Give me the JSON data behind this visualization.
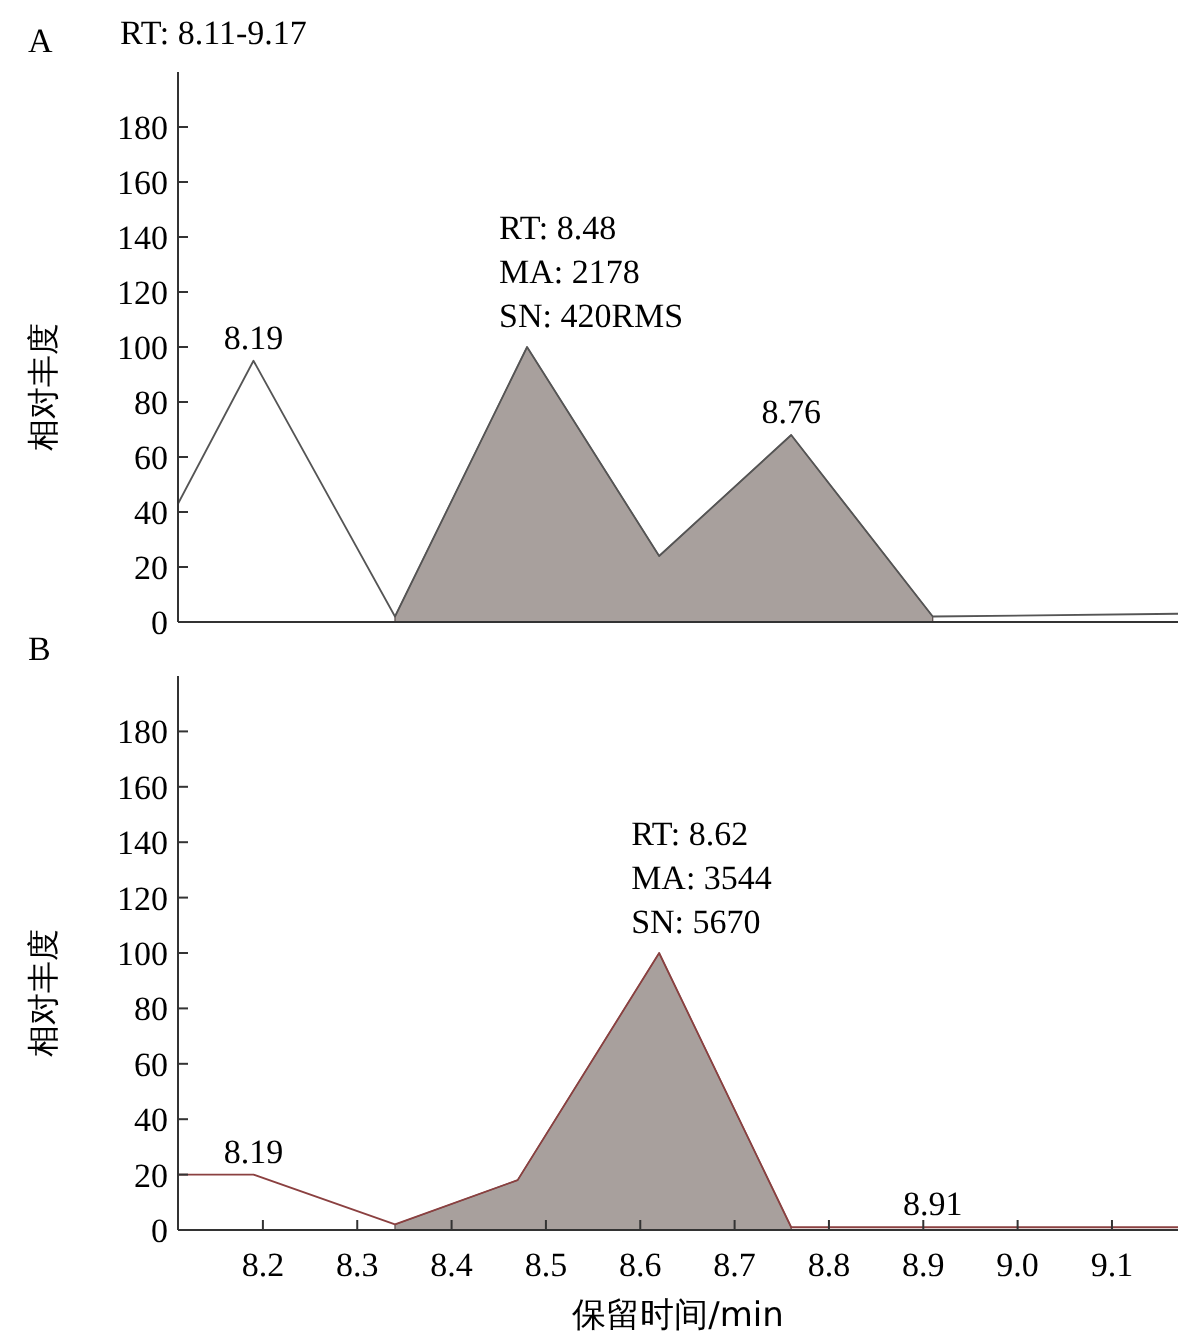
{
  "chart_data": [
    {
      "type": "line",
      "title": "A",
      "subtitle": "RT: 8.11-9.17",
      "ylabel": "相对丰度",
      "xlim": [
        8.11,
        9.17
      ],
      "ylim": [
        0,
        200
      ],
      "yticks": [
        0,
        20,
        40,
        60,
        80,
        100,
        120,
        140,
        160,
        180
      ],
      "tick_labels": "y",
      "grid": false,
      "series": [
        {
          "type": "line",
          "color": "#555555",
          "x": [
            8.11,
            8.19,
            8.34,
            8.48,
            8.62,
            8.76,
            8.91,
            9.17
          ],
          "values": [
            43,
            95,
            2,
            100,
            24,
            68,
            2,
            3
          ]
        },
        {
          "type": "area",
          "color": "#a8a09d",
          "x": [
            8.34,
            8.48,
            8.62,
            8.76,
            8.91
          ],
          "values": [
            2,
            100,
            24,
            68,
            2
          ]
        }
      ],
      "annotations": [
        {
          "text": "8.19",
          "x": 8.19,
          "y": 95
        },
        {
          "text": "RT: 8.48\nMA: 2178\nSN: 420RMS",
          "x": 8.48,
          "y": 100
        },
        {
          "text": "8.76",
          "x": 8.76,
          "y": 68
        }
      ]
    },
    {
      "type": "line",
      "title": "B",
      "xlabel": "保留时间/min",
      "ylabel": "相对丰度",
      "xlim": [
        8.11,
        9.17
      ],
      "ylim": [
        0,
        200
      ],
      "xticks": [
        8.2,
        8.3,
        8.4,
        8.5,
        8.6,
        8.7,
        8.8,
        8.9,
        {
          "value": 9.0,
          "label": "9.0"
        },
        9.1
      ],
      "yticks": [
        0,
        20,
        40,
        60,
        80,
        100,
        120,
        140,
        160,
        180
      ],
      "grid": false,
      "series": [
        {
          "type": "line",
          "color": "#8b4040",
          "x": [
            8.11,
            8.19,
            8.34,
            8.47,
            8.62,
            8.76,
            8.91,
            9.17
          ],
          "values": [
            20,
            20,
            2,
            18,
            100,
            1,
            1,
            1
          ]
        },
        {
          "type": "area",
          "color": "#a8a09d",
          "x": [
            8.34,
            8.47,
            8.62,
            8.76
          ],
          "values": [
            2,
            18,
            100,
            1
          ]
        }
      ],
      "annotations": [
        {
          "text": "8.19",
          "x": 8.19,
          "y": 20
        },
        {
          "text": "RT: 8.62\nMA: 3544\nSN: 5670",
          "x": 8.62,
          "y": 100
        },
        {
          "text": "8.91",
          "x": 8.91,
          "y": 1
        }
      ]
    }
  ]
}
